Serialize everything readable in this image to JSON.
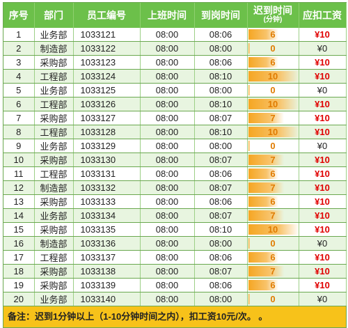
{
  "headers": [
    "序号",
    "部门",
    "员工编号",
    "上班时间",
    "到岗时间",
    "迟到时间",
    "应扣工资"
  ],
  "late_header_sub": "(分钟)",
  "late_max": 10,
  "colors": {
    "header": "#6cc04a",
    "bar": "#f5a623",
    "late_text": "#e07b00",
    "deduct_red": "#e00000",
    "note_bg": "#f7c21a"
  },
  "rows": [
    {
      "no": "1",
      "dept": "业务部",
      "id": "1033121",
      "start": "08:00",
      "arrive": "08:06",
      "late": 6,
      "deduct": "¥10"
    },
    {
      "no": "2",
      "dept": "制造部",
      "id": "1033122",
      "start": "08:00",
      "arrive": "08:00",
      "late": 0,
      "deduct": "¥0"
    },
    {
      "no": "3",
      "dept": "采购部",
      "id": "1033123",
      "start": "08:00",
      "arrive": "08:06",
      "late": 6,
      "deduct": "¥10"
    },
    {
      "no": "4",
      "dept": "工程部",
      "id": "1033124",
      "start": "08:00",
      "arrive": "08:10",
      "late": 10,
      "deduct": "¥10"
    },
    {
      "no": "5",
      "dept": "业务部",
      "id": "1033125",
      "start": "08:00",
      "arrive": "08:00",
      "late": 0,
      "deduct": "¥0"
    },
    {
      "no": "6",
      "dept": "工程部",
      "id": "1033126",
      "start": "08:00",
      "arrive": "08:10",
      "late": 10,
      "deduct": "¥10"
    },
    {
      "no": "7",
      "dept": "采购部",
      "id": "1033127",
      "start": "08:00",
      "arrive": "08:07",
      "late": 7,
      "deduct": "¥10"
    },
    {
      "no": "8",
      "dept": "工程部",
      "id": "1033128",
      "start": "08:00",
      "arrive": "08:10",
      "late": 10,
      "deduct": "¥10"
    },
    {
      "no": "9",
      "dept": "业务部",
      "id": "1033129",
      "start": "08:00",
      "arrive": "08:00",
      "late": 0,
      "deduct": "¥0"
    },
    {
      "no": "10",
      "dept": "采购部",
      "id": "1033130",
      "start": "08:00",
      "arrive": "08:07",
      "late": 7,
      "deduct": "¥10"
    },
    {
      "no": "11",
      "dept": "工程部",
      "id": "1033131",
      "start": "08:00",
      "arrive": "08:06",
      "late": 6,
      "deduct": "¥10"
    },
    {
      "no": "12",
      "dept": "制造部",
      "id": "1033132",
      "start": "08:00",
      "arrive": "08:07",
      "late": 7,
      "deduct": "¥10"
    },
    {
      "no": "13",
      "dept": "采购部",
      "id": "1033133",
      "start": "08:00",
      "arrive": "08:06",
      "late": 6,
      "deduct": "¥10"
    },
    {
      "no": "14",
      "dept": "业务部",
      "id": "1033134",
      "start": "08:00",
      "arrive": "08:07",
      "late": 7,
      "deduct": "¥10"
    },
    {
      "no": "15",
      "dept": "采购部",
      "id": "1033135",
      "start": "08:00",
      "arrive": "08:10",
      "late": 10,
      "deduct": "¥10"
    },
    {
      "no": "16",
      "dept": "制造部",
      "id": "1033136",
      "start": "08:00",
      "arrive": "08:00",
      "late": 0,
      "deduct": "¥0"
    },
    {
      "no": "17",
      "dept": "工程部",
      "id": "1033137",
      "start": "08:00",
      "arrive": "08:06",
      "late": 6,
      "deduct": "¥10"
    },
    {
      "no": "18",
      "dept": "采购部",
      "id": "1033138",
      "start": "08:00",
      "arrive": "08:07",
      "late": 7,
      "deduct": "¥10"
    },
    {
      "no": "19",
      "dept": "采购部",
      "id": "1033139",
      "start": "08:00",
      "arrive": "08:06",
      "late": 6,
      "deduct": "¥10"
    },
    {
      "no": "20",
      "dept": "业务部",
      "id": "1033140",
      "start": "08:00",
      "arrive": "08:00",
      "late": 0,
      "deduct": "¥0"
    }
  ],
  "note": "备注：迟到1分钟以上（1-10分钟时间之内），扣工资10元/次。  。"
}
